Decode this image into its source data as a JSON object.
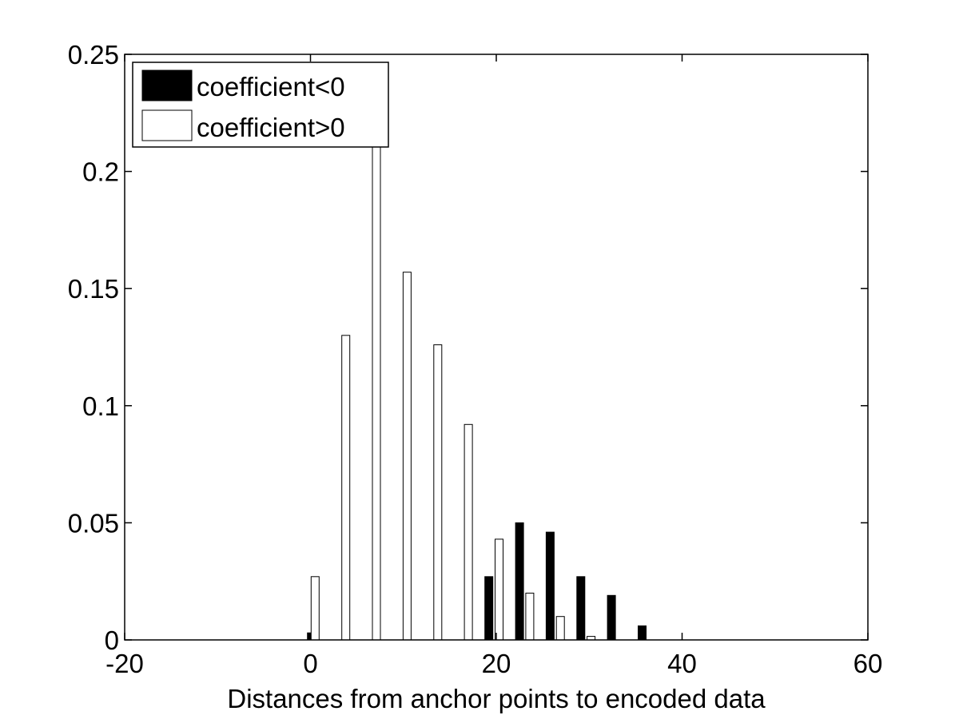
{
  "chart_data": {
    "type": "bar",
    "title": "",
    "xlabel": "Distances from anchor points to encoded data",
    "ylabel": "",
    "xlim": [
      -20,
      60
    ],
    "ylim": [
      0,
      0.25
    ],
    "xticks": [
      -20,
      0,
      20,
      40,
      60
    ],
    "xtick_labels": [
      "-20",
      "0",
      "20",
      "40",
      "60"
    ],
    "yticks": [
      0,
      0.05,
      0.1,
      0.15,
      0.2,
      0.25
    ],
    "ytick_labels": [
      "0",
      "0.05",
      "0.1",
      "0.15",
      "0.2",
      "0.25"
    ],
    "grid": false,
    "legend_position": "top-left",
    "series": [
      {
        "name": "coefficient<0",
        "color": "#000000",
        "x": [
          0.1,
          19.2,
          22.5,
          25.8,
          29.1,
          32.4,
          35.7
        ],
        "values": [
          0.003,
          0.027,
          0.05,
          0.046,
          0.027,
          0.019,
          0.006
        ]
      },
      {
        "name": "coefficient>0",
        "color": "#ffffff",
        "x": [
          0.5,
          3.8,
          7.1,
          10.4,
          13.7,
          17.0,
          20.3,
          23.6,
          26.9,
          30.2
        ],
        "values": [
          0.027,
          0.13,
          0.215,
          0.157,
          0.126,
          0.092,
          0.043,
          0.02,
          0.01,
          0.0015
        ]
      }
    ]
  }
}
